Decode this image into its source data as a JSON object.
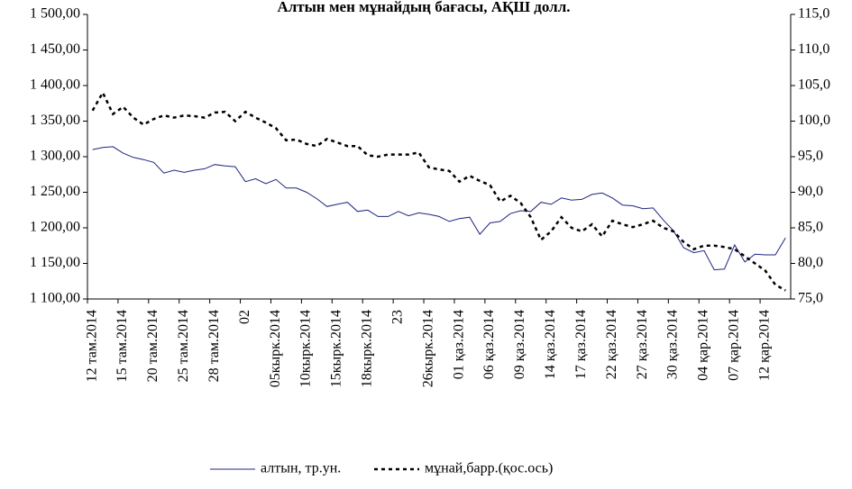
{
  "chart_data": {
    "type": "line",
    "title": "Алтын мен мұнайдың бағасы, АҚШ долл.",
    "categories": [
      "12 там.2014",
      null,
      null,
      "15 там.2014",
      null,
      null,
      "20 там.2014",
      null,
      null,
      "25 там.2014",
      null,
      null,
      "28 там.2014",
      null,
      null,
      "02",
      null,
      null,
      "05кырк.2014",
      null,
      null,
      "10кырк.2014",
      null,
      null,
      "15кырк.2014",
      null,
      null,
      "18кырк.2014",
      null,
      null,
      "23",
      null,
      null,
      "26кырк.2014",
      null,
      null,
      "01 қаз.2014",
      null,
      null,
      "06 қаз.2014",
      null,
      null,
      "09 қаз.2014",
      null,
      null,
      "14 қаз.2014",
      null,
      null,
      "17 қаз.2014",
      null,
      null,
      "22 қаз.2014",
      null,
      null,
      "27 қаз.2014",
      null,
      null,
      "30 қаз.2014",
      null,
      null,
      "04 қар.2014",
      null,
      null,
      "07 қар.2014",
      null,
      null,
      "12 қар.2014",
      null,
      null
    ],
    "series": [
      {
        "name": "алтын, тр.ун.",
        "color": "#1f237f",
        "values": [
          1310,
          1313,
          1314,
          1305,
          1299,
          1296,
          1292,
          1277,
          1281,
          1278,
          1281,
          1283,
          1289,
          1287,
          1286,
          1265,
          1269,
          1262,
          1268,
          1256,
          1256,
          1250,
          1241,
          1230,
          1233,
          1236,
          1223,
          1225,
          1216,
          1216,
          1223,
          1217,
          1221,
          1219,
          1216,
          1209,
          1213,
          1215,
          1191,
          1207,
          1209,
          1220,
          1224,
          1223,
          1236,
          1233,
          1242,
          1239,
          1240,
          1247,
          1249,
          1242,
          1232,
          1231,
          1227,
          1228,
          1211,
          1196,
          1172,
          1165,
          1168,
          1141,
          1142,
          1176,
          1152,
          1163,
          1162,
          1162,
          1186
        ]
      },
      {
        "name": "мұнай,барр.(қос.ось)",
        "color": "#000000",
        "axis": "y2",
        "dashed": true,
        "values": [
          101.5,
          104,
          101,
          102,
          100.5,
          99.5,
          100.3,
          100.8,
          100.5,
          100.8,
          100.7,
          100.5,
          101.2,
          101.3,
          100,
          101.3,
          100.5,
          99.8,
          99,
          97.3,
          97.4,
          96.8,
          96.5,
          97.5,
          97,
          96.5,
          96.5,
          95.2,
          95,
          95.3,
          95.3,
          95.3,
          95.6,
          93.5,
          93.2,
          93,
          91.5,
          92.3,
          91.6,
          91,
          88.7,
          89.5,
          88.5,
          86.5,
          83.3,
          84.5,
          86.5,
          85,
          84.5,
          85.5,
          83.8,
          86,
          85.5,
          85.1,
          85.5,
          86,
          85,
          84.5,
          83,
          82,
          82.5,
          82.5,
          82.3,
          82,
          81,
          80,
          79,
          77,
          76.2
        ]
      }
    ],
    "ylim": [
      1100,
      1500
    ],
    "yticks": [
      {
        "value": 1100,
        "label": "1 100,00"
      },
      {
        "value": 1150,
        "label": "1 150,00"
      },
      {
        "value": 1200,
        "label": "1 200,00"
      },
      {
        "value": 1250,
        "label": "1 250,00"
      },
      {
        "value": 1300,
        "label": "1 300,00"
      },
      {
        "value": 1350,
        "label": "1 350,00"
      },
      {
        "value": 1400,
        "label": "1 400,00"
      },
      {
        "value": 1450,
        "label": "1 450,00"
      },
      {
        "value": 1500,
        "label": "1 500,00"
      }
    ],
    "y2lim": [
      75,
      115
    ],
    "y2ticks": [
      {
        "value": 75,
        "label": "75,0"
      },
      {
        "value": 80,
        "label": "80,0"
      },
      {
        "value": 85,
        "label": "85,0"
      },
      {
        "value": 90,
        "label": "90,0"
      },
      {
        "value": 95,
        "label": "95,0"
      },
      {
        "value": 100,
        "label": "100,0"
      },
      {
        "value": 105,
        "label": "105,0"
      },
      {
        "value": 110,
        "label": "110,0"
      },
      {
        "value": 115,
        "label": "115,0"
      }
    ],
    "grid": false,
    "legend": "bottom"
  }
}
